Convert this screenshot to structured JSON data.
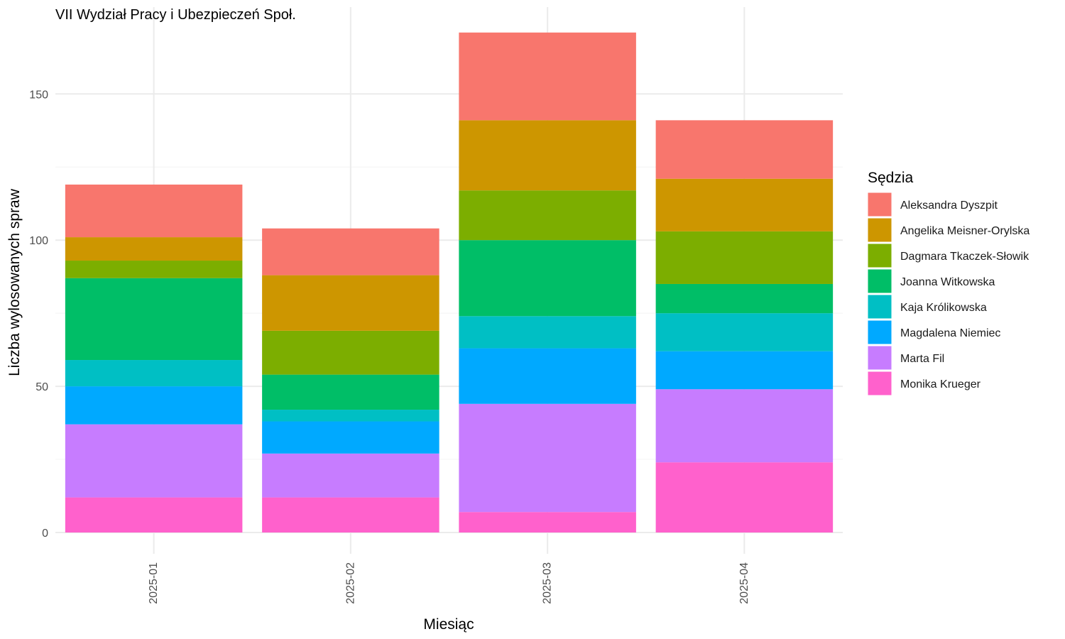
{
  "chart_data": {
    "type": "bar",
    "stacked": true,
    "title": "VII Wydział Pracy i Ubezpieczeń Społ.",
    "xlabel": "Miesiąc",
    "ylabel": "Liczba wylosowanych spraw",
    "ylim": [
      0,
      170
    ],
    "yticks": [
      0,
      50,
      100,
      150
    ],
    "grid": true,
    "legend_title": "Sędzia",
    "legend_position": "right",
    "categories": [
      "2025-01",
      "2025-02",
      "2025-03",
      "2025-04"
    ],
    "series": [
      {
        "name": "Aleksandra Dyszpit",
        "color": "#F8766D",
        "values": [
          18,
          16,
          30,
          20
        ]
      },
      {
        "name": "Angelika Meisner-Orylska",
        "color": "#CD9600",
        "values": [
          8,
          19,
          24,
          18
        ]
      },
      {
        "name": "Dagmara Tkaczek-Słowik",
        "color": "#7CAE00",
        "values": [
          6,
          15,
          17,
          18
        ]
      },
      {
        "name": "Joanna Witkowska",
        "color": "#00BE67",
        "values": [
          28,
          12,
          26,
          10
        ]
      },
      {
        "name": "Kaja Królikowska",
        "color": "#00BFC4",
        "values": [
          9,
          4,
          11,
          13
        ]
      },
      {
        "name": "Magdalena Niemiec",
        "color": "#00A9FF",
        "values": [
          13,
          11,
          19,
          13
        ]
      },
      {
        "name": "Marta Fil",
        "color": "#C77CFF",
        "values": [
          25,
          15,
          37,
          25
        ]
      },
      {
        "name": "Monika Krueger",
        "color": "#FF61CC",
        "values": [
          12,
          12,
          7,
          24
        ]
      }
    ]
  }
}
